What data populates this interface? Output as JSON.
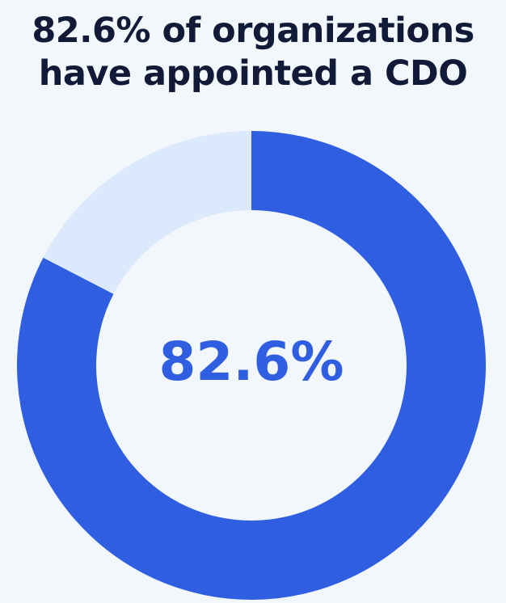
{
  "title": {
    "line1": "82.6% of organizations",
    "line2": "have appointed a CDO"
  },
  "colors": {
    "background": "#f2f7fc",
    "title": "#111a36",
    "primary": "#2f5ee0",
    "secondary": "#dce8fb",
    "center_text": "#2f5ee0"
  },
  "chart_data": {
    "type": "pie",
    "style": "donut",
    "title": "82.6% of organizations have appointed a CDO",
    "slices": [
      {
        "label": "",
        "value": 82.6
      },
      {
        "label": "",
        "value": 17.4
      }
    ],
    "center_label": "82.6%",
    "start_angle": "12 o'clock",
    "direction": "clockwise"
  }
}
